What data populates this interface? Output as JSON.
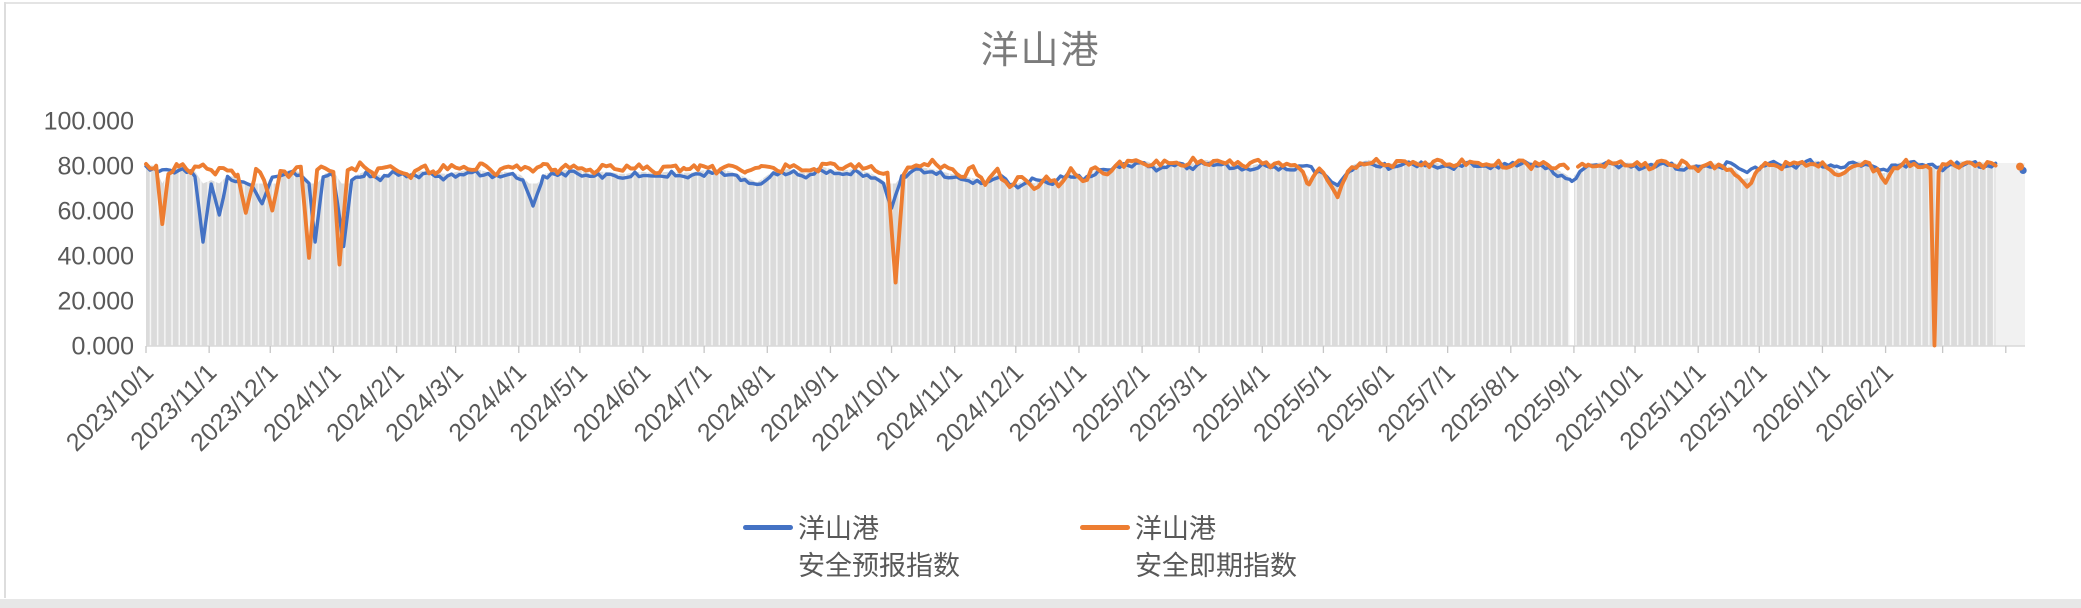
{
  "chart_data": {
    "type": "line",
    "title": "洋山港",
    "y_axis": {
      "min": 0,
      "max": 100,
      "tick_labels": [
        "0.000",
        "20.000",
        "40.000",
        "60.000",
        "80.000",
        "100.000"
      ]
    },
    "x_axis": {
      "start_date": "2023/10/1",
      "tick_interval": "1 month",
      "label_rotation_deg": 45,
      "labels": [
        "2023/10/1",
        "2023/11/1",
        "2023/12/1",
        "2024/1/1",
        "2024/2/1",
        "2024/3/1",
        "2024/4/1",
        "2024/5/1",
        "2024/6/1",
        "2024/7/1",
        "2024/8/1",
        "2024/9/1",
        "2024/10/1",
        "2024/11/1",
        "2024/12/1",
        "2025/1/1",
        "2025/2/1",
        "2025/3/1",
        "2025/4/1",
        "2025/5/1",
        "2025/6/1",
        "2025/7/1",
        "2025/8/1",
        "2025/9/1",
        "2025/10/1",
        "2025/11/1",
        "2025/12/1",
        "2026/1/1",
        "2026/2/1"
      ],
      "month_start_day_offsets": [
        0,
        31,
        61,
        92,
        123,
        152,
        183,
        213,
        244,
        274,
        305,
        336,
        366,
        397,
        427,
        458,
        489,
        517,
        548,
        578,
        609,
        639,
        670,
        701,
        731,
        762,
        792,
        823,
        854,
        882,
        913
      ]
    },
    "legend": [
      {
        "label_line1": "洋山港",
        "label_line2": "安全预报指数",
        "color": "#4472C4"
      },
      {
        "label_line1": "洋山港",
        "label_line2": "安全即期指数",
        "color": "#ED7D31"
      }
    ],
    "plot_background": {
      "fill": "#DBDBDB",
      "stripe_color": "#F6F6F6",
      "right_segment_fill": "#F1F1F1",
      "data_gap_day": 700
    },
    "series": [
      {
        "name": "洋山港 安全预报指数",
        "color": "#4472C4",
        "noise_amplitude": 1.5,
        "noise_phase": 0,
        "points_day_value": [
          [
            0,
            79
          ],
          [
            6,
            78
          ],
          [
            12,
            77.5
          ],
          [
            18,
            78
          ],
          [
            24,
            76
          ],
          [
            28,
            46
          ],
          [
            32,
            72
          ],
          [
            36,
            58
          ],
          [
            40,
            74
          ],
          [
            46,
            73
          ],
          [
            52,
            71
          ],
          [
            57,
            63
          ],
          [
            62,
            75
          ],
          [
            68,
            76
          ],
          [
            74,
            77
          ],
          [
            80,
            72
          ],
          [
            83,
            46
          ],
          [
            87,
            75
          ],
          [
            92,
            76
          ],
          [
            97,
            44
          ],
          [
            101,
            74
          ],
          [
            108,
            76
          ],
          [
            115,
            74
          ],
          [
            122,
            77
          ],
          [
            130,
            75
          ],
          [
            138,
            76.5
          ],
          [
            146,
            74.5
          ],
          [
            154,
            76
          ],
          [
            162,
            77
          ],
          [
            170,
            75
          ],
          [
            178,
            76
          ],
          [
            185,
            74
          ],
          [
            190,
            62
          ],
          [
            195,
            75
          ],
          [
            202,
            76
          ],
          [
            210,
            77
          ],
          [
            218,
            75
          ],
          [
            226,
            76
          ],
          [
            234,
            74.5
          ],
          [
            242,
            76
          ],
          [
            250,
            75
          ],
          [
            258,
            76
          ],
          [
            266,
            75
          ],
          [
            274,
            76.5
          ],
          [
            282,
            77
          ],
          [
            290,
            75
          ],
          [
            300,
            71
          ],
          [
            308,
            76
          ],
          [
            316,
            77
          ],
          [
            324,
            75
          ],
          [
            332,
            78
          ],
          [
            340,
            76
          ],
          [
            348,
            77
          ],
          [
            356,
            75
          ],
          [
            362,
            72
          ],
          [
            366,
            61
          ],
          [
            371,
            75
          ],
          [
            378,
            78
          ],
          [
            386,
            77
          ],
          [
            394,
            75
          ],
          [
            400,
            74
          ],
          [
            410,
            72
          ],
          [
            420,
            75
          ],
          [
            428,
            70
          ],
          [
            435,
            74
          ],
          [
            445,
            72
          ],
          [
            452,
            76
          ],
          [
            460,
            74
          ],
          [
            470,
            78
          ],
          [
            480,
            80
          ],
          [
            490,
            81
          ],
          [
            497,
            78
          ],
          [
            505,
            81
          ],
          [
            512,
            79
          ],
          [
            520,
            81
          ],
          [
            530,
            80
          ],
          [
            540,
            78
          ],
          [
            550,
            80
          ],
          [
            560,
            78
          ],
          [
            570,
            80
          ],
          [
            578,
            76
          ],
          [
            585,
            71
          ],
          [
            592,
            79
          ],
          [
            600,
            81
          ],
          [
            610,
            79
          ],
          [
            620,
            81
          ],
          [
            630,
            80
          ],
          [
            640,
            79
          ],
          [
            650,
            81
          ],
          [
            658,
            79
          ],
          [
            665,
            80
          ],
          [
            675,
            81
          ],
          [
            685,
            80
          ],
          [
            693,
            76
          ],
          [
            700,
            73
          ],
          [
            706,
            79
          ],
          [
            715,
            81
          ],
          [
            725,
            80
          ],
          [
            735,
            79
          ],
          [
            745,
            81
          ],
          [
            755,
            78
          ],
          [
            762,
            80
          ],
          [
            770,
            79
          ],
          [
            778,
            81
          ],
          [
            786,
            77
          ],
          [
            793,
            80
          ],
          [
            800,
            81
          ],
          [
            808,
            79
          ],
          [
            815,
            82
          ],
          [
            823,
            80
          ],
          [
            830,
            79
          ],
          [
            838,
            81
          ],
          [
            845,
            80
          ],
          [
            853,
            78
          ],
          [
            860,
            80
          ],
          [
            868,
            81
          ],
          [
            875,
            80
          ],
          [
            882,
            79
          ],
          [
            889,
            80.5
          ],
          [
            896,
            81
          ],
          [
            902,
            79.5
          ],
          [
            908,
            80
          ]
        ],
        "isolated_point": [
          921.5,
          77.8
        ]
      },
      {
        "name": "洋山港 安全即期指数",
        "color": "#ED7D31",
        "noise_amplitude": 1.9,
        "noise_phase": 2.0,
        "points_day_value": [
          [
            0,
            80
          ],
          [
            5,
            79
          ],
          [
            8,
            54
          ],
          [
            11,
            77
          ],
          [
            16,
            80
          ],
          [
            22,
            78
          ],
          [
            28,
            80
          ],
          [
            34,
            77
          ],
          [
            40,
            79
          ],
          [
            45,
            75
          ],
          [
            49,
            59
          ],
          [
            54,
            78
          ],
          [
            58,
            74
          ],
          [
            62,
            60
          ],
          [
            66,
            77
          ],
          [
            70,
            76
          ],
          [
            76,
            80
          ],
          [
            80,
            39
          ],
          [
            84,
            78
          ],
          [
            88,
            79
          ],
          [
            92,
            77
          ],
          [
            95,
            36
          ],
          [
            99,
            78
          ],
          [
            105,
            80
          ],
          [
            112,
            77
          ],
          [
            120,
            80
          ],
          [
            128,
            75
          ],
          [
            135,
            79
          ],
          [
            142,
            77
          ],
          [
            150,
            80
          ],
          [
            158,
            78
          ],
          [
            165,
            80
          ],
          [
            172,
            77
          ],
          [
            180,
            80
          ],
          [
            188,
            78
          ],
          [
            195,
            80
          ],
          [
            202,
            78
          ],
          [
            210,
            80
          ],
          [
            218,
            77
          ],
          [
            226,
            80
          ],
          [
            234,
            78
          ],
          [
            242,
            80
          ],
          [
            250,
            77
          ],
          [
            258,
            80
          ],
          [
            265,
            78
          ],
          [
            272,
            80
          ],
          [
            280,
            78
          ],
          [
            288,
            80
          ],
          [
            295,
            77
          ],
          [
            302,
            80
          ],
          [
            310,
            78
          ],
          [
            318,
            80
          ],
          [
            326,
            77
          ],
          [
            334,
            81
          ],
          [
            342,
            79
          ],
          [
            350,
            80
          ],
          [
            358,
            78
          ],
          [
            364,
            76
          ],
          [
            368,
            28
          ],
          [
            372,
            77
          ],
          [
            378,
            80
          ],
          [
            386,
            81
          ],
          [
            394,
            79
          ],
          [
            400,
            75
          ],
          [
            406,
            79
          ],
          [
            412,
            72
          ],
          [
            418,
            78
          ],
          [
            424,
            70
          ],
          [
            430,
            76
          ],
          [
            436,
            69
          ],
          [
            442,
            75
          ],
          [
            448,
            71
          ],
          [
            454,
            78
          ],
          [
            460,
            73
          ],
          [
            466,
            79
          ],
          [
            472,
            76
          ],
          [
            478,
            81
          ],
          [
            486,
            82
          ],
          [
            494,
            80
          ],
          [
            500,
            82
          ],
          [
            508,
            80
          ],
          [
            514,
            82
          ],
          [
            522,
            81
          ],
          [
            530,
            82
          ],
          [
            538,
            80
          ],
          [
            546,
            82
          ],
          [
            554,
            80
          ],
          [
            560,
            81
          ],
          [
            566,
            79
          ],
          [
            571,
            72
          ],
          [
            576,
            79
          ],
          [
            580,
            74
          ],
          [
            585,
            66
          ],
          [
            590,
            78
          ],
          [
            596,
            80
          ],
          [
            602,
            82
          ],
          [
            610,
            80
          ],
          [
            618,
            82
          ],
          [
            626,
            80
          ],
          [
            634,
            82
          ],
          [
            642,
            80
          ],
          [
            650,
            82
          ],
          [
            656,
            80
          ],
          [
            662,
            81
          ],
          [
            668,
            79
          ],
          [
            674,
            82
          ],
          [
            680,
            80
          ],
          [
            686,
            81
          ],
          [
            692,
            79
          ],
          [
            698,
            80
          ],
          [
            700,
            null
          ],
          [
            703,
            79
          ],
          [
            708,
            81
          ],
          [
            714,
            79
          ],
          [
            720,
            82
          ],
          [
            726,
            80
          ],
          [
            732,
            81
          ],
          [
            738,
            79
          ],
          [
            744,
            82
          ],
          [
            750,
            80
          ],
          [
            756,
            81
          ],
          [
            762,
            78
          ],
          [
            768,
            81
          ],
          [
            774,
            79
          ],
          [
            780,
            77
          ],
          [
            786,
            70
          ],
          [
            791,
            78
          ],
          [
            797,
            81
          ],
          [
            803,
            79
          ],
          [
            809,
            82
          ],
          [
            815,
            80
          ],
          [
            821,
            81
          ],
          [
            827,
            78
          ],
          [
            832,
            75
          ],
          [
            838,
            80
          ],
          [
            844,
            81
          ],
          [
            850,
            78
          ],
          [
            854,
            72
          ],
          [
            858,
            79
          ],
          [
            864,
            81
          ],
          [
            870,
            80
          ],
          [
            874,
            79
          ],
          [
            876,
            78
          ],
          [
            878,
            0
          ],
          [
            880,
            78
          ],
          [
            884,
            81
          ],
          [
            890,
            80
          ],
          [
            896,
            81
          ],
          [
            902,
            80
          ],
          [
            908,
            81
          ]
        ],
        "isolated_point": [
          920,
          79.5
        ]
      }
    ]
  }
}
